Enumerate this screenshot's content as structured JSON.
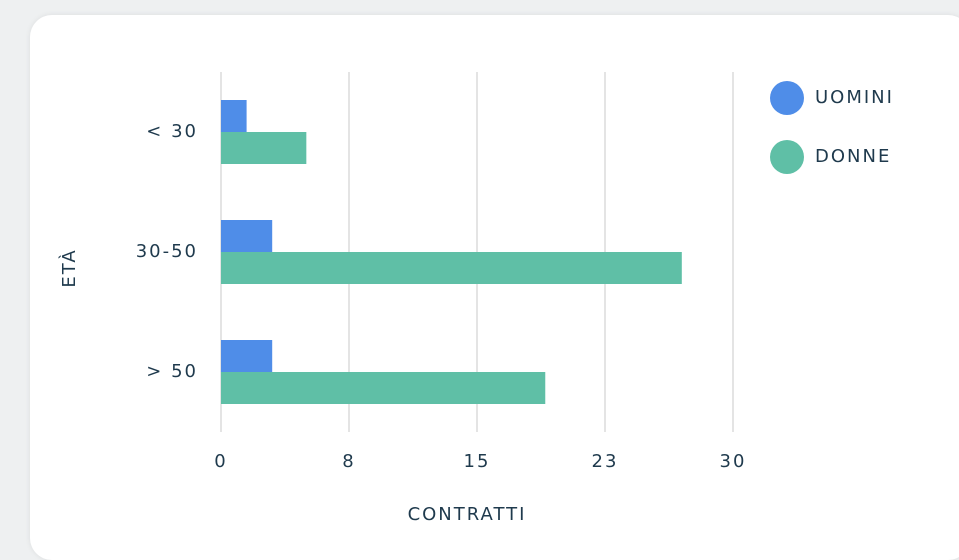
{
  "chart_data": {
    "type": "hbar",
    "categories": [
      "< 30",
      "30-50",
      "> 50"
    ],
    "series": [
      {
        "name": "UOMINI",
        "color": "#4f8de8",
        "values": [
          1.5,
          3,
          3
        ]
      },
      {
        "name": "DONNE",
        "color": "#5fbfa6",
        "values": [
          5,
          27,
          19
        ]
      }
    ],
    "xlabel": "CONTRATTI",
    "ylabel": "ETÀ",
    "xlim": [
      0,
      30
    ],
    "xticks": [
      0,
      {
        "value": 7.5,
        "label": "8"
      },
      15,
      {
        "value": 22.5,
        "label": "23"
      },
      30
    ],
    "grid": true,
    "legend": "right"
  }
}
